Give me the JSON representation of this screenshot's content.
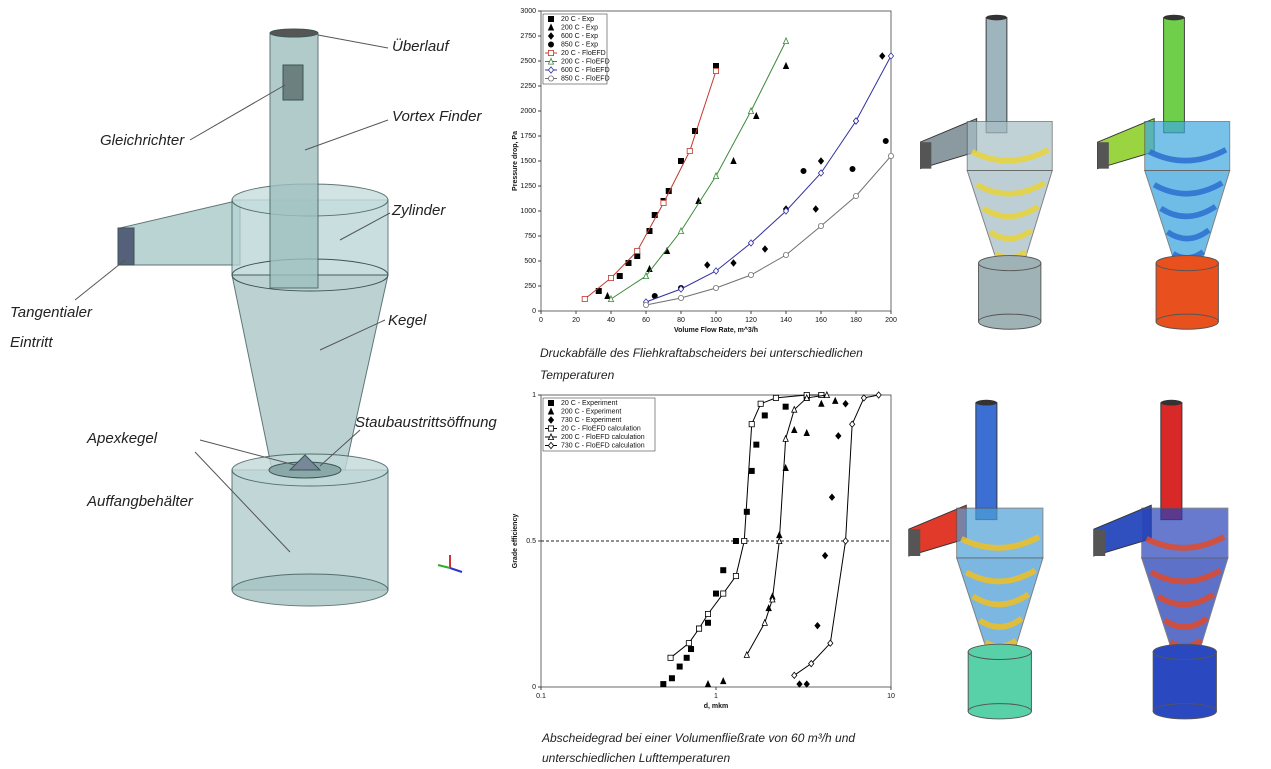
{
  "diagram": {
    "labels": {
      "ueberlauf": "Überlauf",
      "vortex_finder": "Vortex Finder",
      "gleichrichter": "Gleichrichter",
      "zylinder": "Zylinder",
      "eintritt": "Tangentialer Eintritt",
      "kegel": "Kegel",
      "apexkegel": "Apexkegel",
      "staub": "Staubaustrittsöffnung",
      "auffang": "Auffangbehälter"
    }
  },
  "chart_data": [
    {
      "type": "scatter",
      "caption": "Druckabfälle des Fliehkraftabscheiders bei unterschiedlichen Temperaturen",
      "x_label": "Volume Flow Rate, m^3/h",
      "y_label": "Pressure drop, Pa",
      "xlim": [
        0,
        200
      ],
      "xticks": [
        0,
        20,
        40,
        60,
        80,
        100,
        120,
        140,
        160,
        180,
        200
      ],
      "ylim": [
        0,
        3000
      ],
      "yticks": [
        0,
        250,
        500,
        750,
        1000,
        1250,
        1500,
        1750,
        2000,
        2250,
        2500,
        2750,
        3000
      ],
      "legend": "upper left",
      "series": [
        {
          "name": "20 C  - Exp",
          "color": "#000000",
          "style": "markers",
          "marker": "square",
          "x": [
            33,
            45,
            50,
            55,
            62,
            65,
            70,
            73,
            80,
            88,
            100,
            100
          ],
          "values": [
            200,
            350,
            480,
            550,
            800,
            960,
            1100,
            1200,
            1500,
            1800,
            2400,
            2450
          ]
        },
        {
          "name": "200 C - Exp",
          "color": "#000000",
          "style": "markers",
          "marker": "triangle",
          "x": [
            38,
            62,
            72,
            90,
            110,
            123,
            140
          ],
          "values": [
            150,
            420,
            600,
            1100,
            1500,
            1950,
            2450
          ]
        },
        {
          "name": "600 C - Exp",
          "color": "#000000",
          "style": "markers",
          "marker": "diamond",
          "x": [
            95,
            110,
            128,
            140,
            157,
            160,
            180,
            195
          ],
          "values": [
            460,
            480,
            620,
            1020,
            1020,
            1500,
            1900,
            2550
          ]
        },
        {
          "name": "850 C - Exp",
          "color": "#000000",
          "style": "markers",
          "marker": "circle",
          "x": [
            65,
            80,
            150,
            178,
            197
          ],
          "values": [
            150,
            230,
            1400,
            1420,
            1700
          ]
        },
        {
          "name": "20 C  - FloEFD",
          "color": "#c0392b",
          "style": "line",
          "marker": "open-square",
          "x": [
            25,
            40,
            55,
            70,
            85,
            100
          ],
          "values": [
            120,
            330,
            600,
            1080,
            1600,
            2400
          ]
        },
        {
          "name": "200 C - FloEFD",
          "color": "#3a8a3a",
          "style": "line",
          "marker": "open-triangle",
          "x": [
            40,
            60,
            80,
            100,
            120,
            140
          ],
          "values": [
            120,
            350,
            800,
            1350,
            2000,
            2700
          ]
        },
        {
          "name": "600 C - FloEFD",
          "color": "#3030a0",
          "style": "line",
          "marker": "open-diamond",
          "x": [
            60,
            80,
            100,
            120,
            140,
            160,
            180,
            200
          ],
          "values": [
            90,
            220,
            400,
            680,
            1000,
            1380,
            1900,
            2550
          ]
        },
        {
          "name": "850 C - FloEFD",
          "color": "#707070",
          "style": "line",
          "marker": "open-circle",
          "x": [
            60,
            80,
            100,
            120,
            140,
            160,
            180,
            200
          ],
          "values": [
            60,
            130,
            230,
            360,
            560,
            850,
            1150,
            1550
          ]
        }
      ]
    },
    {
      "type": "scatter",
      "caption": "Abscheidegrad bei einer Volumenfließrate von 60 m³/h und unterschiedlichen Lufttemperaturen",
      "x_label": "d, mkm",
      "y_label": "Grade efficiency",
      "xscale": "log",
      "xlim": [
        0.1,
        10
      ],
      "xticks": [
        0.1,
        1,
        10
      ],
      "ylim": [
        0,
        1
      ],
      "yticks": [
        0,
        0.5,
        1
      ],
      "hline": 0.5,
      "legend": "upper left",
      "series": [
        {
          "name": "20 C -  Experiment",
          "color": "#000000",
          "style": "markers",
          "marker": "square",
          "x": [
            0.5,
            0.56,
            0.62,
            0.68,
            0.72,
            0.8,
            0.9,
            1.0,
            1.1,
            1.3,
            1.5,
            1.6,
            1.7,
            1.9,
            2.5,
            3.3,
            4
          ],
          "values": [
            0.01,
            0.03,
            0.07,
            0.1,
            0.13,
            0.2,
            0.22,
            0.32,
            0.4,
            0.5,
            0.6,
            0.74,
            0.83,
            0.93,
            0.96,
            0.99,
            1.0
          ]
        },
        {
          "name": "200 C - Experiment",
          "color": "#000000",
          "style": "markers",
          "marker": "triangle",
          "x": [
            0.9,
            1.1,
            2.0,
            2.1,
            2.3,
            2.5,
            2.8,
            3.3,
            4.0,
            4.8
          ],
          "values": [
            0.01,
            0.02,
            0.27,
            0.31,
            0.52,
            0.75,
            0.88,
            0.87,
            0.97,
            0.98
          ]
        },
        {
          "name": "730 C - Experiment",
          "color": "#000000",
          "style": "markers",
          "marker": "diamond",
          "x": [
            3.0,
            3.3,
            3.8,
            4.2,
            4.6,
            5.0,
            5.5
          ],
          "values": [
            0.01,
            0.01,
            0.21,
            0.45,
            0.65,
            0.86,
            0.97
          ]
        },
        {
          "name": "20 C -  FloEFD calculation",
          "color": "#000000",
          "style": "line",
          "marker": "open-square",
          "x": [
            0.55,
            0.7,
            0.8,
            0.9,
            1.1,
            1.3,
            1.45,
            1.6,
            1.8,
            2.2,
            3.3,
            4
          ],
          "values": [
            0.1,
            0.15,
            0.2,
            0.25,
            0.32,
            0.38,
            0.5,
            0.9,
            0.97,
            0.99,
            1.0,
            1.0
          ]
        },
        {
          "name": "200 C - FloEFD calculation",
          "color": "#000000",
          "style": "line",
          "marker": "open-triangle",
          "x": [
            1.5,
            1.9,
            2.1,
            2.3,
            2.5,
            2.8,
            3.3,
            4.3
          ],
          "values": [
            0.11,
            0.22,
            0.3,
            0.5,
            0.85,
            0.95,
            0.99,
            1.0
          ]
        },
        {
          "name": "730 C - FloEFD calculation",
          "color": "#000000",
          "style": "line",
          "marker": "open-diamond",
          "x": [
            2.8,
            3.5,
            4.5,
            5.5,
            6,
            7,
            8.5
          ],
          "values": [
            0.04,
            0.08,
            0.15,
            0.5,
            0.9,
            0.99,
            1.0
          ]
        }
      ]
    }
  ]
}
